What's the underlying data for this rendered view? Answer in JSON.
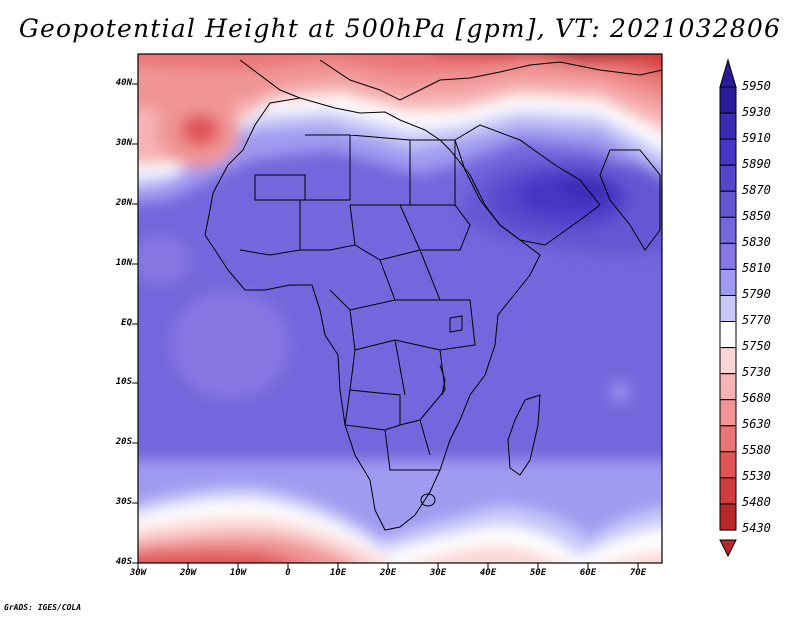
{
  "title": "Geopotential Height at 500hPa [gpm], VT: 2021032806",
  "map": {
    "variable": "Geopotential Height at 500hPa",
    "units": "gpm",
    "valid_time": "2021032806",
    "lon_range": [
      -30,
      75
    ],
    "lat_range": [
      -40,
      45
    ]
  },
  "axes": {
    "y_labels": [
      "40N",
      "30N",
      "20N",
      "10N",
      "EQ",
      "10S",
      "20S",
      "30S",
      "40S"
    ],
    "x_labels": [
      "30W",
      "20W",
      "10W",
      "0",
      "10E",
      "20E",
      "30E",
      "40E",
      "50E",
      "60E",
      "70E"
    ]
  },
  "colorbar": {
    "levels": [
      "5950",
      "5930",
      "5910",
      "5890",
      "5870",
      "5850",
      "5830",
      "5810",
      "5790",
      "5770",
      "5750",
      "5730",
      "5680",
      "5630",
      "5580",
      "5530",
      "5480",
      "5430"
    ],
    "colors": [
      "#2a1a9a",
      "#3a2ab4",
      "#4636c6",
      "#5646cc",
      "#6656d4",
      "#7466dc",
      "#8676e2",
      "#a09af0",
      "#c8c8f8",
      "#ffffff",
      "#fbd6d6",
      "#f6b4b4",
      "#f09494",
      "#ea7474",
      "#e05656",
      "#d23c3c",
      "#b82828"
    ]
  },
  "credit": "GrADS: IGES/COLA"
}
